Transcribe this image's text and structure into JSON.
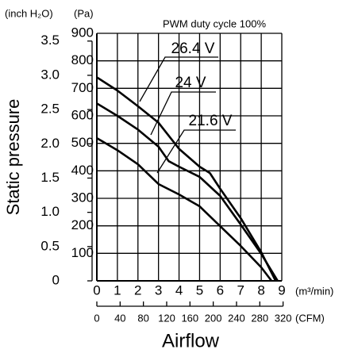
{
  "chart_data": {
    "type": "line",
    "title": "PWM duty cycle 100%",
    "x_label": "Airflow",
    "y_label": "Static pressure",
    "y_unit": "(Pa)",
    "y2_unit": "(inch H₂O)",
    "x_unit": "(m³/min)",
    "x2_unit": "(CFM)",
    "xlim": [
      0,
      9
    ],
    "xticks": [
      0,
      1,
      2,
      3,
      4,
      5,
      6,
      7,
      8,
      9
    ],
    "x2lim": [
      0,
      317.8
    ],
    "x2ticks": [
      0,
      40,
      80,
      120,
      160,
      200,
      240,
      280,
      320
    ],
    "ylim": [
      0,
      900
    ],
    "yticks": [
      100,
      200,
      300,
      400,
      500,
      600,
      700,
      800,
      900
    ],
    "y2lim": [
      0,
      3.613
    ],
    "y2ticks": [
      0,
      0.5,
      {
        "value": 1,
        "label": "1.0"
      },
      1.5,
      {
        "value": 2,
        "label": "2.0"
      },
      2.5,
      {
        "value": 3,
        "label": "3.0"
      },
      3.5
    ],
    "grid": true,
    "series": [
      {
        "name": "26.4 V",
        "color": "#000000",
        "x": [
          0,
          1,
          2,
          3,
          4,
          5,
          5.5,
          6,
          7,
          8,
          8.7
        ],
        "values": [
          740,
          692,
          635,
          575,
          480,
          415,
          392,
          335,
          228,
          104,
          0
        ]
      },
      {
        "name": "24 V",
        "color": "#000000",
        "x": [
          0,
          1,
          2,
          3,
          3.5,
          4,
          5,
          6,
          7,
          8,
          8.8
        ],
        "values": [
          645,
          600,
          550,
          488,
          435,
          415,
          378,
          309,
          205,
          98,
          0
        ]
      },
      {
        "name": "21.6 V",
        "color": "#000000",
        "x": [
          0,
          1,
          2,
          3,
          4,
          5,
          6,
          7,
          8,
          8.5
        ],
        "values": [
          519,
          475,
          424,
          352,
          314,
          271,
          199,
          127,
          49,
          0
        ]
      }
    ]
  }
}
